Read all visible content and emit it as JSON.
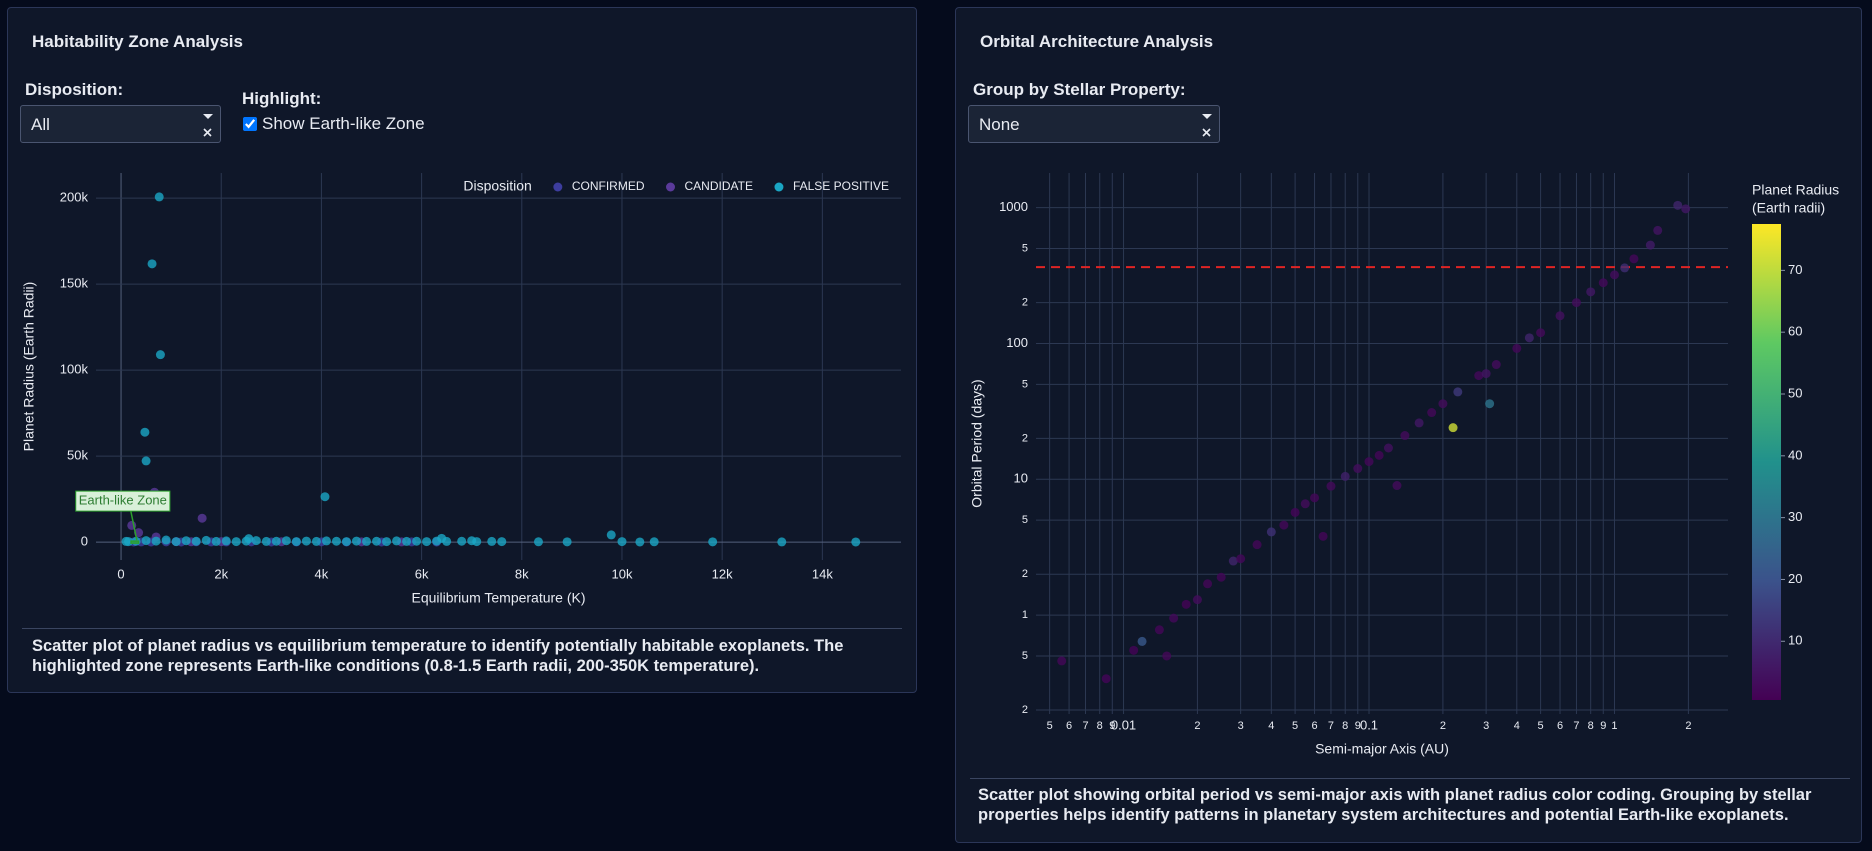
{
  "panels": [
    {
      "title": "Habitability Zone Analysis",
      "controls": [
        {
          "label": "Disposition:",
          "value": "All"
        },
        {
          "label": "Highlight:",
          "option": "Show Earth-like Zone",
          "checked": true
        }
      ],
      "chart": {
        "type": "scatter",
        "xlabel": "Equilibrium Temperature (K)",
        "ylabel": "Planet Radius (Earth Radii)",
        "xlim": [
          -500,
          15570
        ],
        "ylim": [
          -10400,
          214600
        ],
        "xticks": [
          0,
          {
            "value": 2000,
            "label": "2k"
          },
          {
            "value": 4000,
            "label": "4k"
          },
          {
            "value": 6000,
            "label": "6k"
          },
          {
            "value": 8000,
            "label": "8k"
          },
          {
            "value": 10000,
            "label": "10k"
          },
          {
            "value": 12000,
            "label": "12k"
          },
          {
            "value": 14000,
            "label": "14k"
          }
        ],
        "yticks": [
          0,
          {
            "value": 50000,
            "label": "50k"
          },
          {
            "value": 100000,
            "label": "100k"
          },
          {
            "value": 150000,
            "label": "150k"
          },
          {
            "value": 200000,
            "label": "200k"
          }
        ],
        "grid": true,
        "legend": {
          "title": "Disposition",
          "position": "top-right"
        },
        "series": [
          {
            "name": "CONFIRMED",
            "color": "#3d3d9e",
            "x": [
              250,
              400,
              600,
              900,
              1200,
              1500,
              1800,
              2100,
              2600,
              3000,
              3500,
              4000,
              4500,
              5200,
              5800,
              6300
            ],
            "values": [
              80,
              120,
              100,
              150,
              90,
              200,
              110,
              130,
              160,
              90,
              120,
              140,
              100,
              80,
              110,
              90
            ]
          },
          {
            "name": "CANDIDATE",
            "color": "#5a3a9a",
            "x": [
              667,
              1619,
              214,
              350,
              700,
              1100,
              1400,
              2000,
              3200,
              4800,
              5600
            ],
            "values": [
              29000,
              13900,
              9700,
              5500,
              3000,
              300,
              200,
              250,
              180,
              150,
              120
            ]
          },
          {
            "name": "FALSE POSITIVE",
            "color": "#1aa6c4",
            "x": [
              762,
              619,
              786,
              476,
              500,
              4071,
              9786,
              8333,
              8905,
              10000,
              10357,
              10643,
              11810,
              13190,
              14667,
              6400,
              7000,
              2550,
              150,
              300,
              100,
              500,
              700,
              900,
              1100,
              1300,
              1500,
              1700,
              1900,
              2100,
              2300,
              2500,
              2700,
              2900,
              3100,
              3300,
              3500,
              3700,
              3900,
              4100,
              4300,
              4500,
              4700,
              4900,
              5100,
              5300,
              5500,
              5700,
              5900,
              6100,
              6300,
              6500,
              6800,
              7100,
              7400,
              7600
            ],
            "values": [
              200700,
              161800,
              109000,
              63900,
              47200,
              26400,
              4200,
              200,
              150,
              300,
              100,
              200,
              150,
              120,
              100,
              2200,
              800,
              2000,
              300,
              500,
              400,
              900,
              600,
              1200,
              300,
              800,
              500,
              1000,
              400,
              700,
              300,
              600,
              900,
              400,
              500,
              800,
              300,
              600,
              400,
              700,
              500,
              300,
              600,
              400,
              500,
              300,
              700,
              400,
              500,
              300,
              600,
              400,
              500,
              300,
              400,
              300
            ]
          }
        ],
        "zone": {
          "label": "Earth-like Zone",
          "x": [
            200,
            350
          ],
          "y": [
            0.8,
            1.5
          ],
          "color": "#2ca02c"
        }
      },
      "caption": "Scatter plot of planet radius vs equilibrium temperature to identify potentially habitable exoplanets. The highlighted zone represents Earth-like conditions (0.8-1.5 Earth radii, 200-350K temperature)."
    },
    {
      "title": "Orbital Architecture Analysis",
      "controls": [
        {
          "label": "Group by Stellar Property:",
          "value": "None"
        }
      ],
      "chart": {
        "type": "scatter",
        "xlabel": "Semi-major Axis (AU)",
        "ylabel": "Orbital Period (days)",
        "log_x": true,
        "log_y": true,
        "xlim": [
          0.0044,
          2.9
        ],
        "ylim": [
          0.187,
          1800
        ],
        "xticks": [
          {
            "value": 0.005,
            "label": "5"
          },
          {
            "value": 0.006,
            "label": "6"
          },
          {
            "value": 0.007,
            "label": "7"
          },
          {
            "value": 0.008,
            "label": "8"
          },
          {
            "value": 0.009,
            "label": "9"
          },
          0.01,
          {
            "value": 0.02,
            "label": "2"
          },
          {
            "value": 0.03,
            "label": "3"
          },
          {
            "value": 0.04,
            "label": "4"
          },
          {
            "value": 0.05,
            "label": "5"
          },
          {
            "value": 0.06,
            "label": "6"
          },
          {
            "value": 0.07,
            "label": "7"
          },
          {
            "value": 0.08,
            "label": "8"
          },
          {
            "value": 0.09,
            "label": "9"
          },
          0.1,
          {
            "value": 0.2,
            "label": "2"
          },
          {
            "value": 0.3,
            "label": "3"
          },
          {
            "value": 0.4,
            "label": "4"
          },
          {
            "value": 0.5,
            "label": "5"
          },
          {
            "value": 0.6,
            "label": "6"
          },
          {
            "value": 0.7,
            "label": "7"
          },
          {
            "value": 0.8,
            "label": "8"
          },
          {
            "value": 0.9,
            "label": "9"
          },
          1,
          2
        ],
        "yticks": [
          {
            "value": 0.2,
            "label": "2"
          },
          {
            "value": 0.5,
            "label": "5"
          },
          1,
          2,
          5,
          10,
          {
            "value": 20,
            "label": "2"
          },
          {
            "value": 50,
            "label": "5"
          },
          100,
          {
            "value": 200,
            "label": "2"
          },
          {
            "value": 500,
            "label": "5"
          },
          1000
        ],
        "grid": true,
        "x": [
          0.0056,
          0.0085,
          0.011,
          0.0119,
          0.014,
          0.016,
          0.018,
          0.02,
          0.022,
          0.025,
          0.028,
          0.03,
          0.035,
          0.04,
          0.045,
          0.05,
          0.055,
          0.06,
          0.07,
          0.08,
          0.09,
          0.1,
          0.11,
          0.12,
          0.14,
          0.16,
          0.18,
          0.2,
          0.23,
          0.22,
          0.28,
          0.3,
          0.33,
          0.31,
          0.4,
          0.45,
          0.5,
          0.6,
          0.7,
          0.8,
          0.9,
          1.0,
          1.1,
          1.2,
          1.4,
          1.81,
          1.95,
          1.5,
          0.015,
          0.065,
          0.13
        ],
        "values": [
          0.46,
          0.34,
          0.55,
          0.64,
          0.78,
          0.95,
          1.2,
          1.3,
          1.7,
          1.9,
          2.5,
          2.6,
          3.3,
          4.1,
          4.6,
          5.7,
          6.6,
          7.3,
          8.9,
          10.5,
          12,
          13.5,
          15,
          17,
          21,
          26,
          31,
          36,
          44,
          24,
          58,
          60,
          70,
          36,
          92,
          110,
          120,
          160,
          200,
          240,
          280,
          320,
          360,
          420,
          530,
          1040,
          980,
          680,
          0.5,
          3.8,
          9
        ],
        "color_values": [
          2,
          1.5,
          1.2,
          22,
          1.8,
          2.5,
          1.3,
          3,
          2,
          1.6,
          9,
          2.2,
          1.9,
          12,
          2.4,
          1.4,
          3.1,
          2,
          2.6,
          8,
          3.5,
          2.1,
          1.7,
          4,
          2.9,
          6,
          2.3,
          3,
          14,
          72,
          2.5,
          5,
          3.2,
          30,
          2,
          9,
          2.7,
          4,
          3,
          6,
          2.5,
          3.3,
          11,
          2.2,
          7,
          9,
          6,
          5,
          2,
          1.6,
          2.8
        ],
        "colorscale": "viridis",
        "colorbar": {
          "title": [
            "Planet Radius",
            "(Earth radii)"
          ],
          "lim": [
            0.5,
            77.5
          ],
          "ticks": [
            10,
            20,
            30,
            40,
            50,
            60,
            70
          ]
        },
        "reference_line": {
          "y": 365,
          "color": "#e02424"
        }
      },
      "caption": "Scatter plot showing orbital period vs semi-major axis with planet radius color coding. Grouping by stellar properties helps identify patterns in planetary system architectures and potential Earth-like exoplanets."
    }
  ]
}
